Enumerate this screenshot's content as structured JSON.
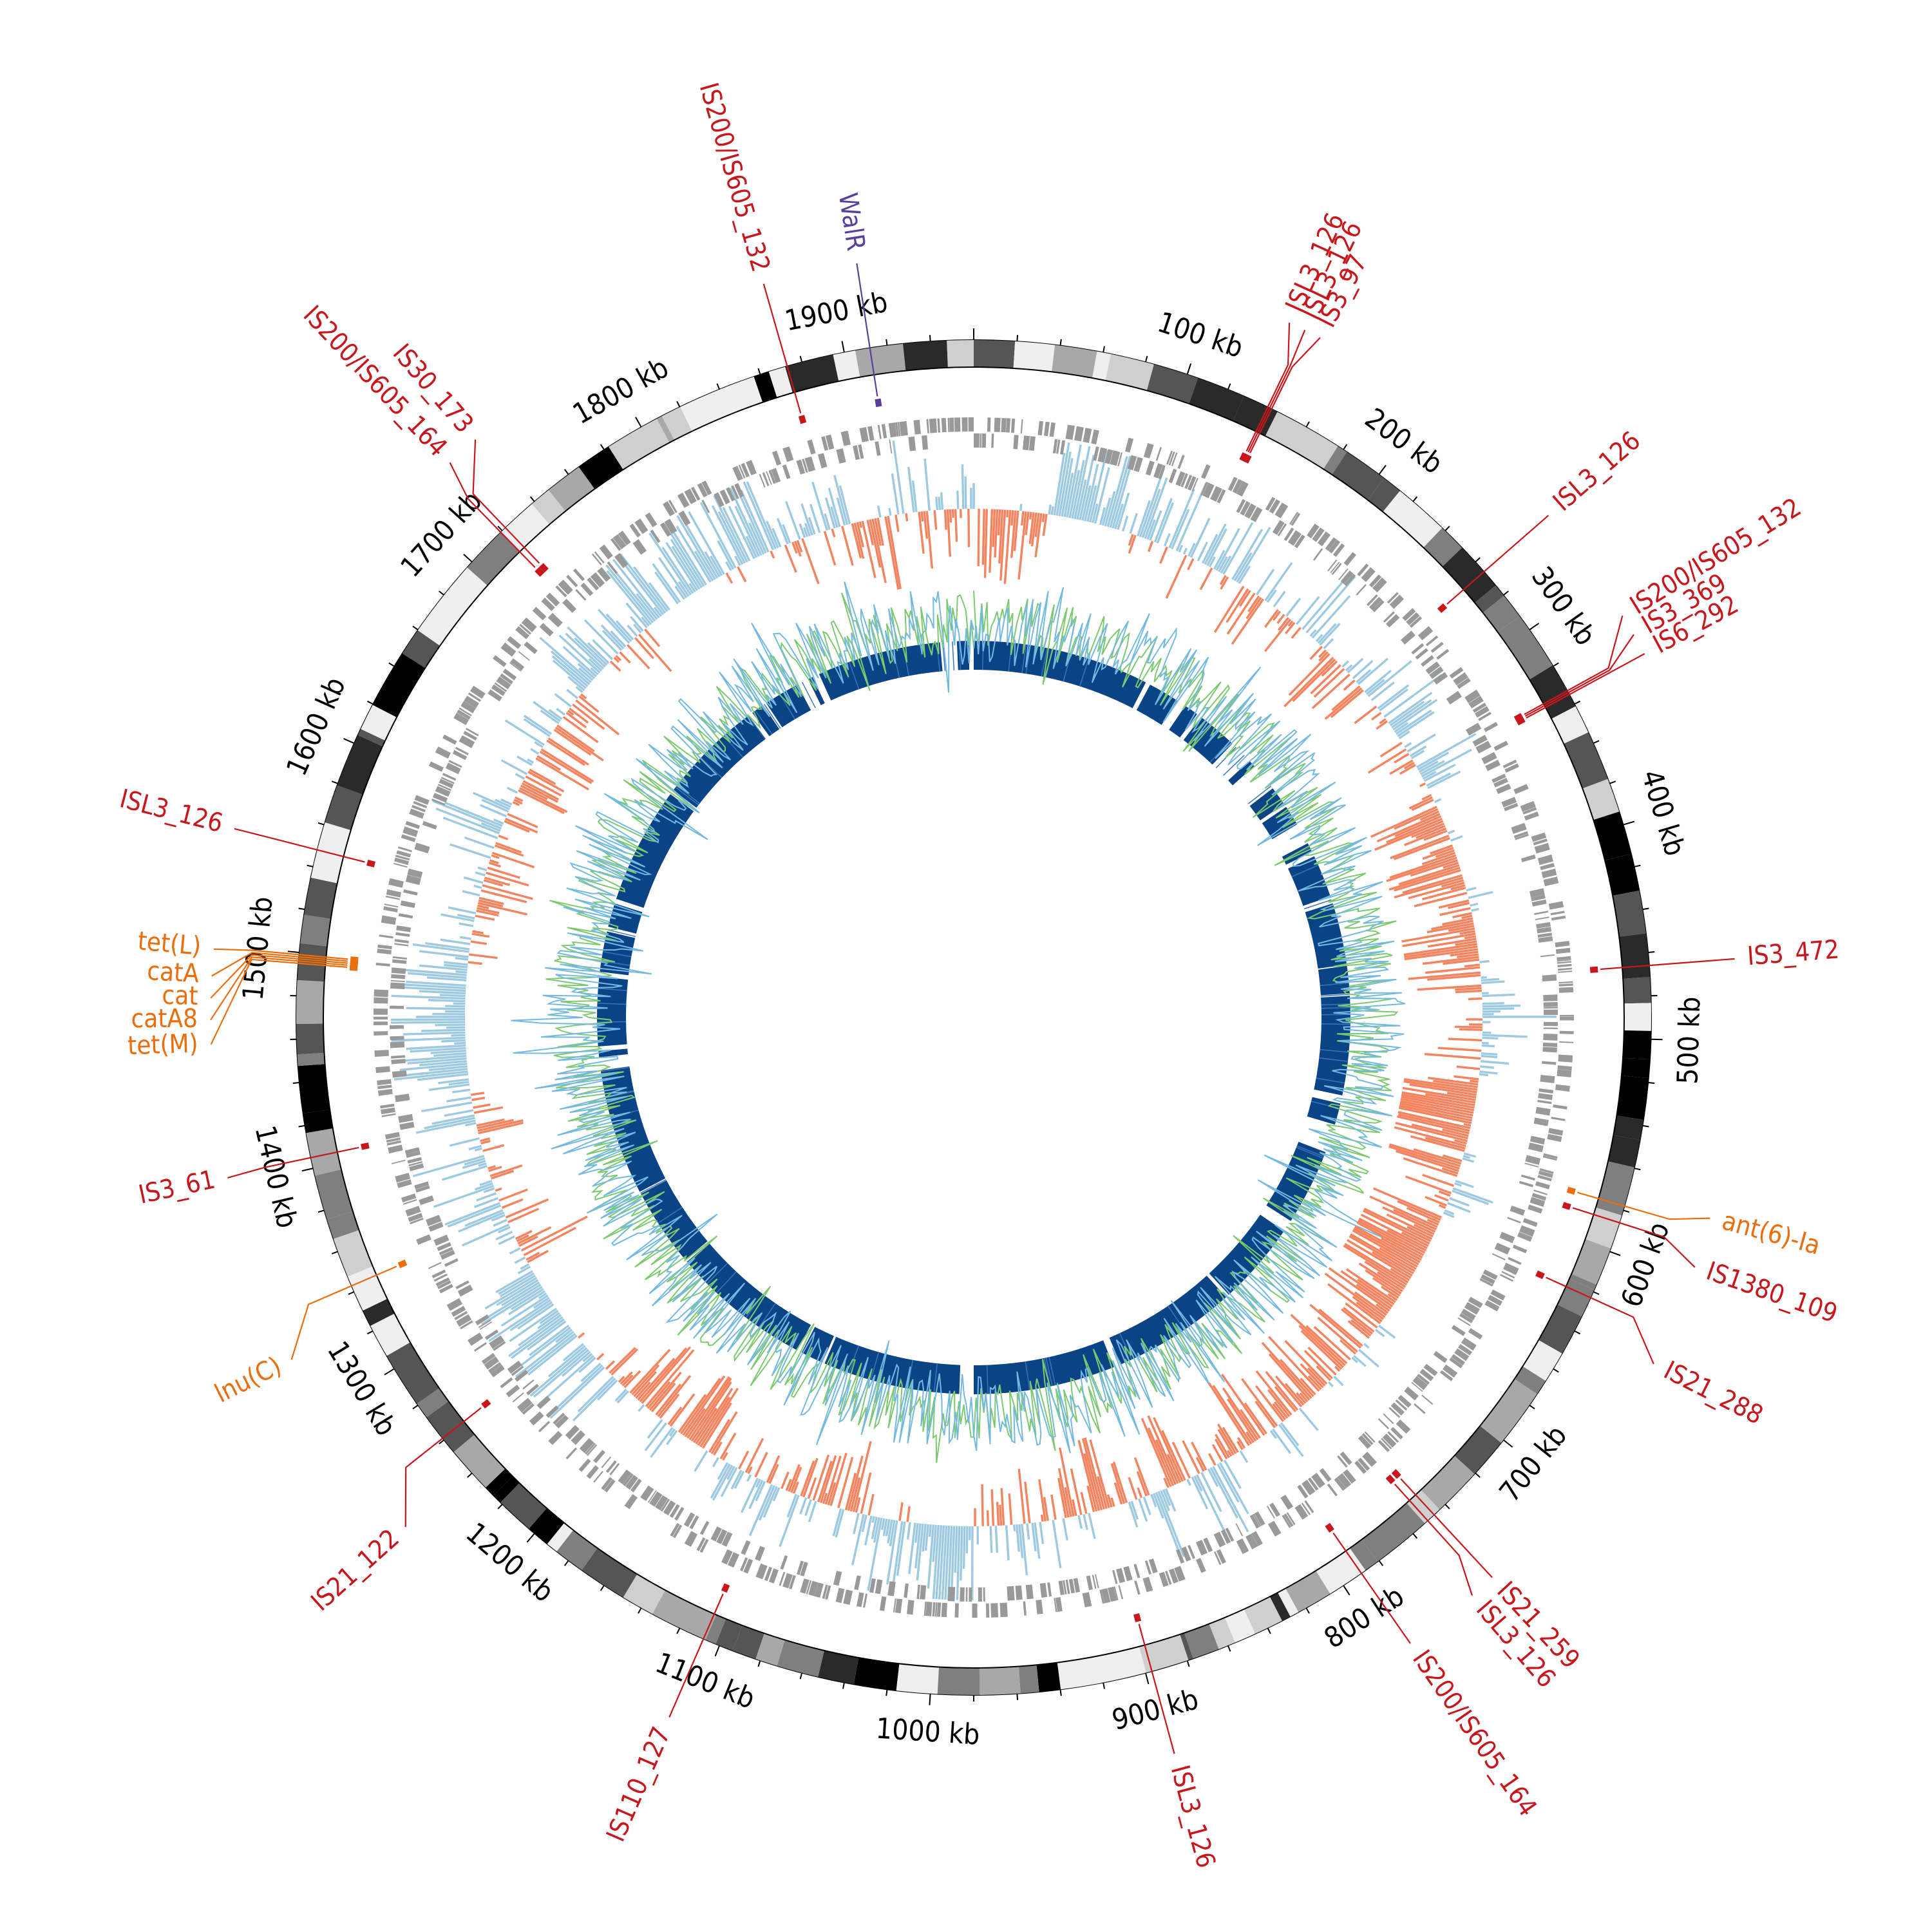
{
  "genome": {
    "total_kb": 1960
  },
  "colors": {
    "is_element": "#c8161d",
    "resistance_gene": "#ec6d0b",
    "virulence": "#5a3f9a",
    "cds": "#999999",
    "gc_skew_pos": "#9ecae1",
    "gc_skew_neg": "#f4845f",
    "gc_content_a": "#74b9e0",
    "gc_content_b": "#7dc970",
    "blast_hit": "#0b4387",
    "ideogram": [
      "#000000",
      "#2a2a2a",
      "#555555",
      "#7f7f7f",
      "#a8a8a8",
      "#cfcfcf",
      "#efefef"
    ]
  },
  "ticks": [
    {
      "kb": 100,
      "label": "100 kb"
    },
    {
      "kb": 200,
      "label": "200 kb"
    },
    {
      "kb": 300,
      "label": "300 kb"
    },
    {
      "kb": 400,
      "label": "400 kb"
    },
    {
      "kb": 500,
      "label": "500 kb"
    },
    {
      "kb": 600,
      "label": "600 kb"
    },
    {
      "kb": 700,
      "label": "700 kb"
    },
    {
      "kb": 800,
      "label": "800 kb"
    },
    {
      "kb": 900,
      "label": "900 kb"
    },
    {
      "kb": 1000,
      "label": "1000 kb"
    },
    {
      "kb": 1100,
      "label": "1100 kb"
    },
    {
      "kb": 1200,
      "label": "1200 kb"
    },
    {
      "kb": 1300,
      "label": "1300 kb"
    },
    {
      "kb": 1400,
      "label": "1400 kb"
    },
    {
      "kb": 1500,
      "label": "1500 kb"
    },
    {
      "kb": 1600,
      "label": "1600 kb"
    },
    {
      "kb": 1700,
      "label": "1700 kb"
    },
    {
      "kb": 1800,
      "label": "1800 kb"
    },
    {
      "kb": 1900,
      "label": "1900 kb"
    }
  ],
  "features": [
    {
      "label": "IS200/IS605_132",
      "kb": 1873,
      "label_kb": 1873,
      "type": "is"
    },
    {
      "label": "WalR",
      "kb": 1912,
      "label_kb": 1912,
      "type": "virulence"
    },
    {
      "label": "ISL3_126",
      "kb": 140,
      "label_kb": 133,
      "type": "is"
    },
    {
      "label": "ISL3_126",
      "kb": 141,
      "label_kb": 140,
      "type": "is"
    },
    {
      "label": "IS3_97",
      "kb": 142,
      "label_kb": 147,
      "type": "is"
    },
    {
      "label": "ISL3_126",
      "kb": 266,
      "label_kb": 266,
      "type": "is"
    },
    {
      "label": "IS200/IS605_132",
      "kb": 333,
      "label_kb": 317,
      "type": "is"
    },
    {
      "label": "IS3_369",
      "kb": 334,
      "label_kb": 326,
      "type": "is"
    },
    {
      "label": "IS6_292",
      "kb": 335,
      "label_kb": 335,
      "type": "is"
    },
    {
      "label": "IS3_472",
      "kb": 466,
      "label_kb": 466,
      "type": "is"
    },
    {
      "label": "ant(6)-Ia",
      "kb": 578,
      "label_kb": 573,
      "type": "resistance"
    },
    {
      "label": "IS1380_109",
      "kb": 586,
      "label_kb": 594,
      "type": "is"
    },
    {
      "label": "IS21_288",
      "kb": 623,
      "label_kb": 637,
      "type": "is"
    },
    {
      "label": "IS21_259",
      "kb": 747,
      "label_kb": 747,
      "type": "is"
    },
    {
      "label": "ISL3_126",
      "kb": 751,
      "label_kb": 758,
      "type": "is"
    },
    {
      "label": "IS200/IS605_164",
      "kb": 790,
      "label_kb": 790,
      "type": "is"
    },
    {
      "label": "ISL3_126",
      "kb": 897,
      "label_kb": 897,
      "type": "is"
    },
    {
      "label": "IS110_127",
      "kb": 1108,
      "label_kb": 1108,
      "type": "is"
    },
    {
      "label": "IS21_122",
      "kb": 1261,
      "label_kb": 1242,
      "type": "is"
    },
    {
      "label": "lnu(C)",
      "kb": 1343,
      "label_kb": 1325,
      "type": "resistance"
    },
    {
      "label": "IS3_61",
      "kb": 1405,
      "label_kb": 1404,
      "type": "is"
    },
    {
      "label": "tet(M)",
      "kb": 1495,
      "label_kb": 1459,
      "type": "resistance"
    },
    {
      "label": "catA8",
      "kb": 1496,
      "label_kb": 1469,
      "type": "resistance"
    },
    {
      "label": "cat",
      "kb": 1497,
      "label_kb": 1478,
      "type": "resistance"
    },
    {
      "label": "catA",
      "kb": 1498,
      "label_kb": 1487,
      "type": "resistance"
    },
    {
      "label": "tet(L)",
      "kb": 1499,
      "label_kb": 1498,
      "type": "resistance"
    },
    {
      "label": "ISL3_126",
      "kb": 1548,
      "label_kb": 1548,
      "type": "is"
    },
    {
      "label": "IS200/IS605_164",
      "kb": 1719,
      "label_kb": 1724,
      "type": "is"
    },
    {
      "label": "IS30_173",
      "kb": 1722,
      "label_kb": 1738,
      "type": "is"
    }
  ],
  "blast_gaps_kb": [
    [
      1932,
      1946
    ],
    [
      1956,
      1962
    ],
    [
      148,
      152
    ],
    [
      178,
      186
    ],
    [
      198,
      202
    ],
    [
      236,
      256
    ],
    [
      262,
      286
    ],
    [
      302,
      305
    ],
    [
      322,
      340
    ],
    [
      348,
      352
    ],
    [
      388,
      394
    ],
    [
      446,
      447
    ],
    [
      470,
      472
    ],
    [
      555,
      562
    ],
    [
      580,
      604
    ],
    [
      668,
      678
    ],
    [
      748,
      751
    ],
    [
      855,
      861
    ],
    [
      980,
      992
    ],
    [
      1107,
      1109
    ],
    [
      1128,
      1132
    ],
    [
      1250,
      1252
    ],
    [
      1318,
      1320
    ],
    [
      1426,
      1437
    ],
    [
      1442,
      1446
    ],
    [
      1504,
      1508
    ],
    [
      1542,
      1546
    ],
    [
      1566,
      1570
    ],
    [
      1668,
      1672
    ],
    [
      1760,
      1764
    ],
    [
      1775,
      1778
    ],
    [
      1808,
      1818
    ],
    [
      1822,
      1828
    ]
  ]
}
